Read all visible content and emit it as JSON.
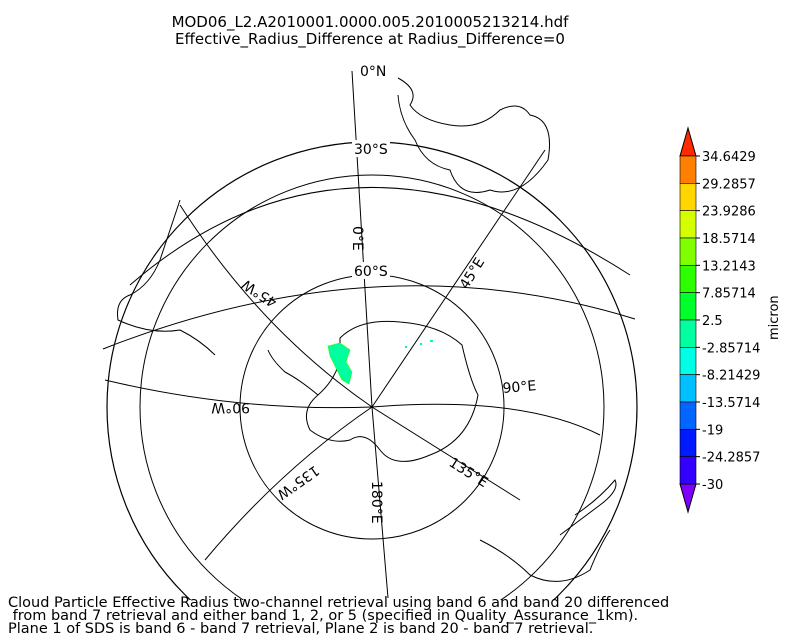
{
  "title": "MOD06_L2.A2010001.0000.005.2010005213214.hdf",
  "subtitle": "Effective_Radius_Difference at Radius_Difference=0",
  "latitude_labels": [
    "0°N",
    "30°S",
    "60°S"
  ],
  "longitude_labels": [
    "0°E",
    "45°E",
    "90°E",
    "135°E",
    "180°E",
    "135°W",
    "90°W",
    "45°W"
  ],
  "colorbar": {
    "unit": "micron",
    "ticks": [
      "34.6429",
      "29.2857",
      "23.9286",
      "18.5714",
      "13.2143",
      "7.85714",
      "2.5",
      "-2.85714",
      "-8.21429",
      "-13.5714",
      "-19",
      "-24.2857",
      "-30"
    ],
    "colors": [
      "#ff2a00",
      "#ff8000",
      "#ffd500",
      "#d5ff00",
      "#80ff00",
      "#2bff00",
      "#00ff2b",
      "#00ff9f",
      "#00ffe6",
      "#00bfff",
      "#0066ff",
      "#001aff",
      "#3300ff",
      "#8000ff"
    ]
  },
  "footer": {
    "line1": "Cloud Particle Effective Radius two-channel retrieval using band 6 and band 20 differenced",
    "line2": " from band 7 retrieval and either band 1, 2, or 5 (specified in Quality_Assurance_1km).",
    "line3": "Plane 1 of SDS is band 6 - band 7 retrieval, Plane 2 is band 20 - band 7 retrieval."
  }
}
